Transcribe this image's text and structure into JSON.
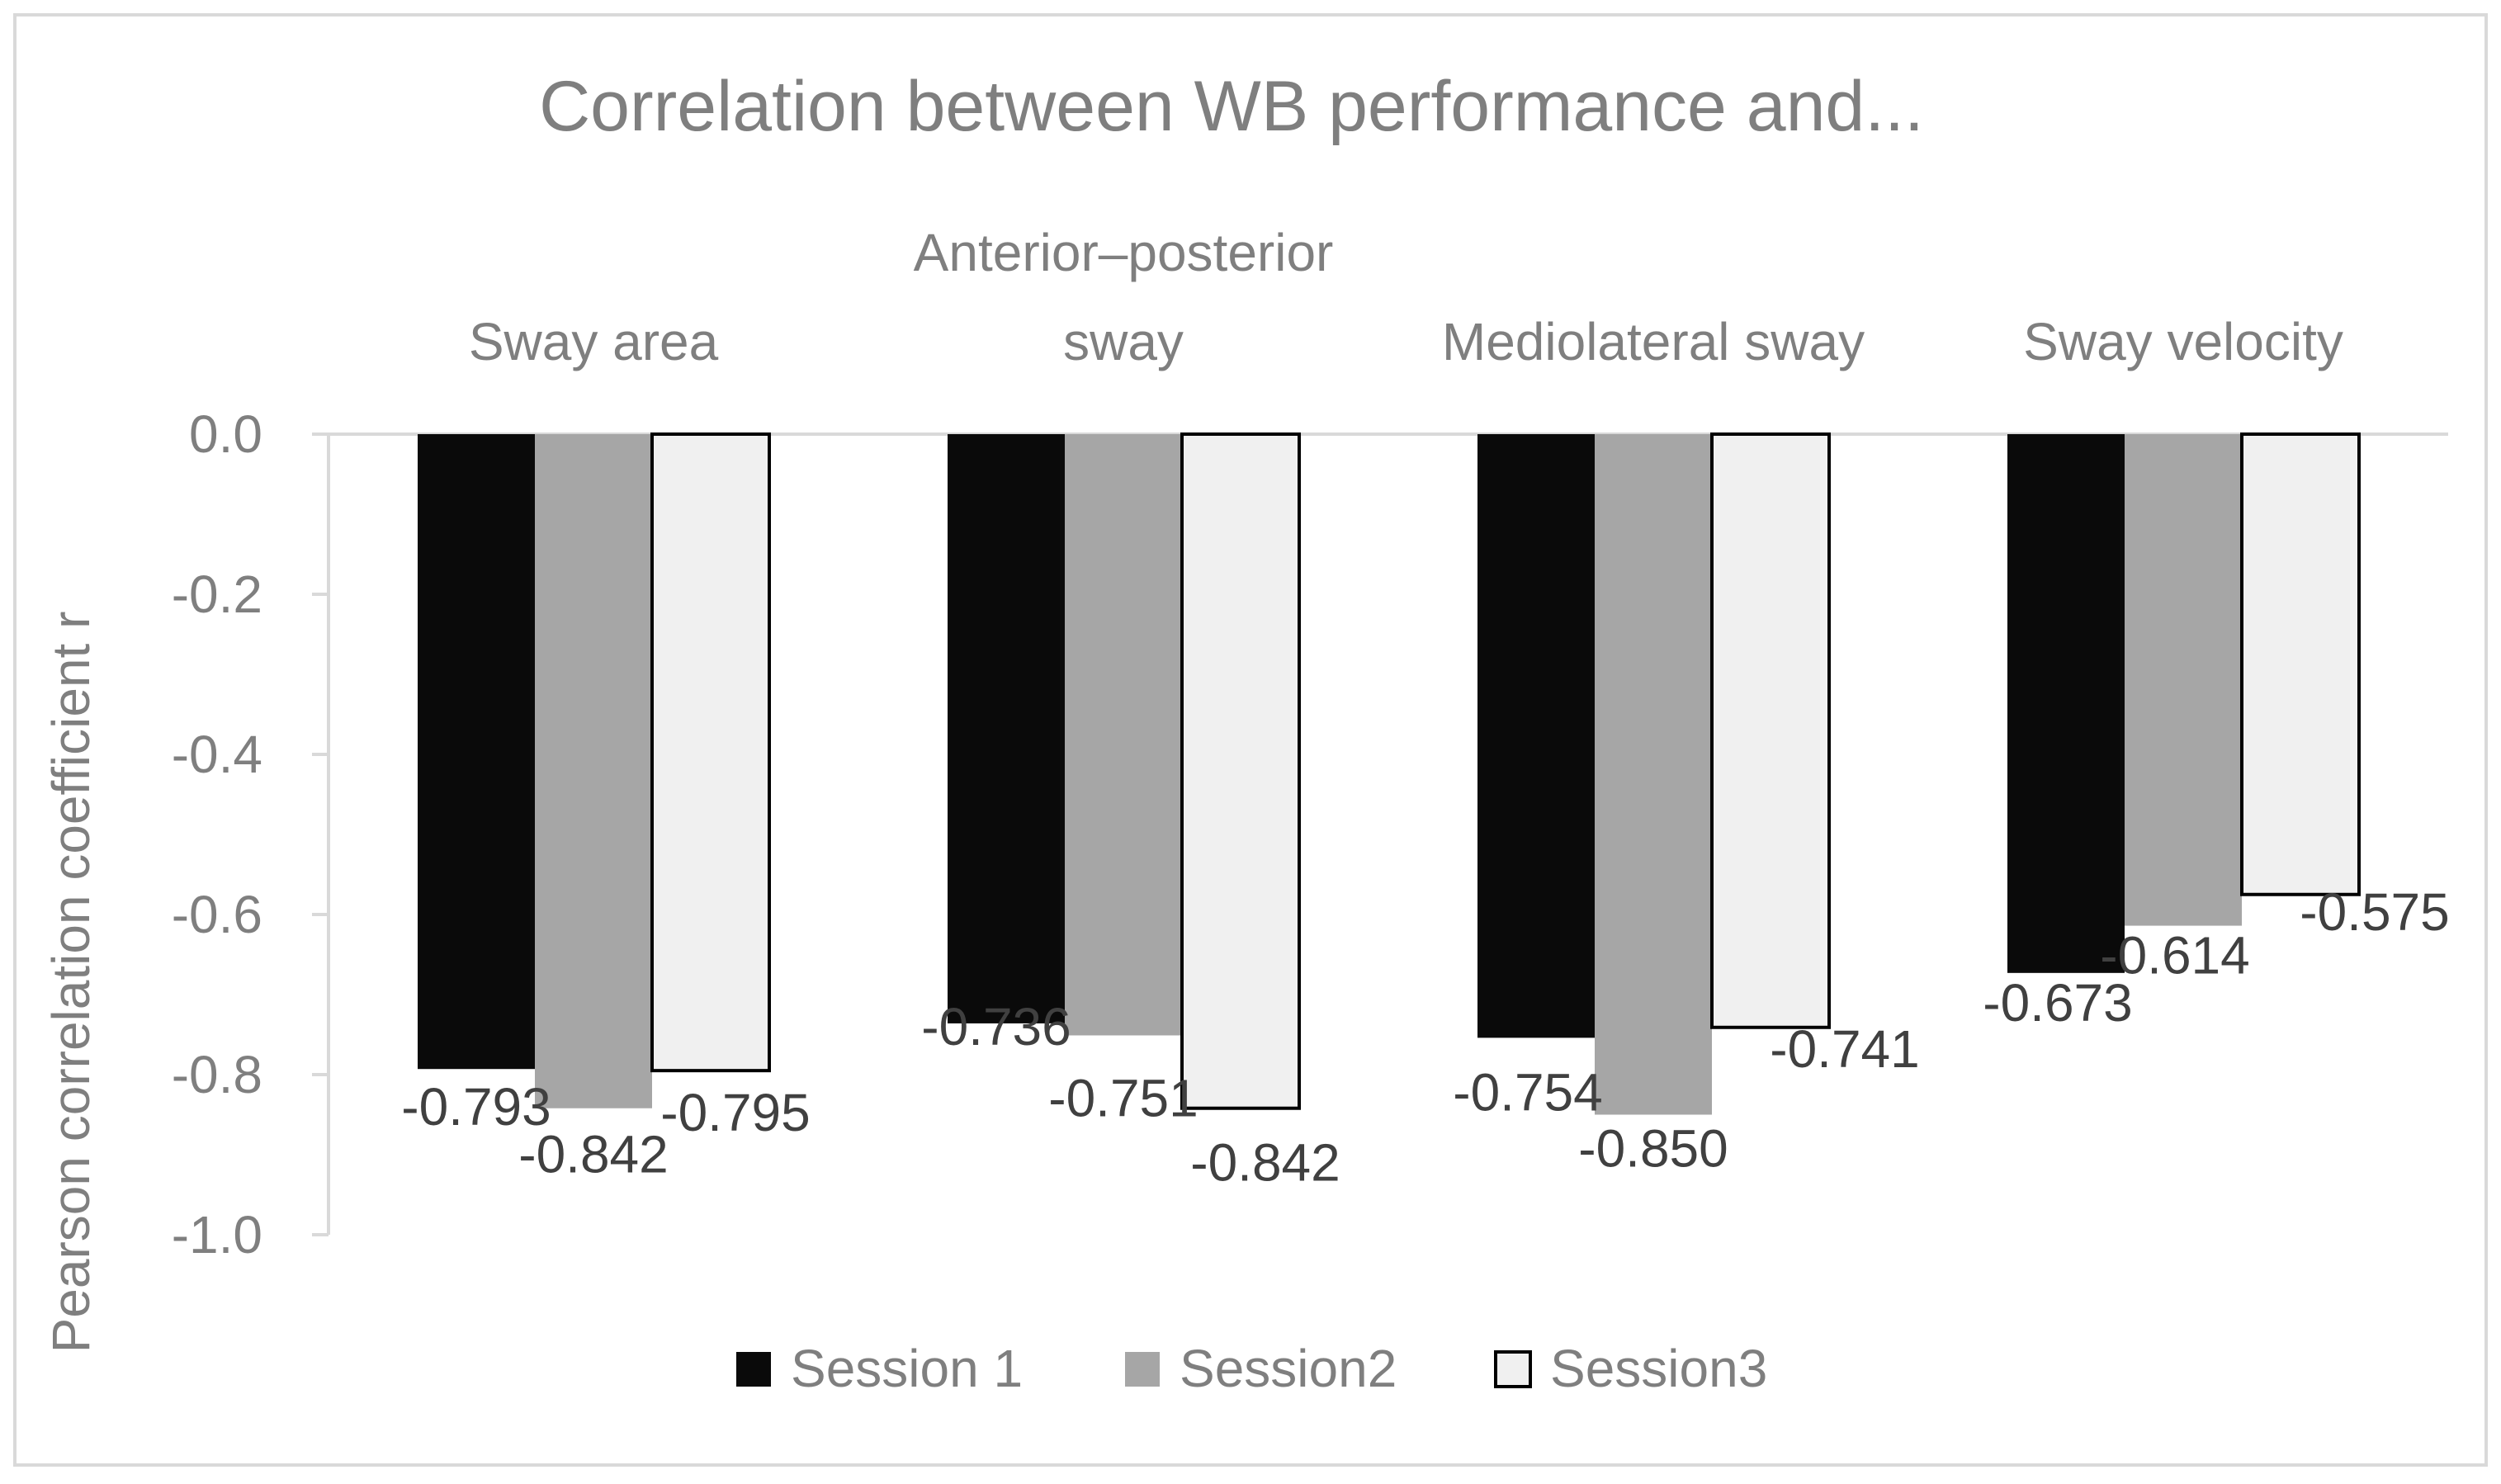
{
  "chart_data": {
    "type": "bar",
    "title": "Correlation between WB performance and...",
    "xlabel": "",
    "ylabel": "Pearson correlation coefficient r",
    "categories": [
      [
        "Sway area"
      ],
      [
        "Anterior–posterior",
        "sway"
      ],
      [
        "Mediolateral sway"
      ],
      [
        "Sway velocity"
      ]
    ],
    "series": [
      {
        "name": "Session 1",
        "values": [
          -0.793,
          -0.736,
          -0.754,
          -0.673
        ],
        "labels": [
          "-0.793",
          "-0.736",
          "-0.754",
          "-0.673"
        ],
        "color": "#0a0a0a",
        "stroke": "#0a0a0a"
      },
      {
        "name": "Session2",
        "values": [
          -0.842,
          -0.751,
          -0.85,
          -0.614
        ],
        "labels": [
          "-0.842",
          "-0.751",
          "-0.850",
          "-0.614"
        ],
        "color": "#a6a6a6",
        "stroke": "#a6a6a6"
      },
      {
        "name": "Session3",
        "values": [
          -0.795,
          -0.842,
          -0.741,
          -0.575
        ],
        "labels": [
          "-0.795",
          "-0.842",
          "-0.741",
          "-0.575"
        ],
        "color": "#f0f0f0",
        "stroke": "#000000"
      }
    ],
    "yticks": [
      "0.0",
      "-0.2",
      "-0.4",
      "-0.6",
      "-0.8",
      "-1.0"
    ],
    "ylim": [
      -1.0,
      0.0
    ],
    "grid": false,
    "legend": "bottom",
    "colors": {
      "text": "#7f7f7f",
      "axis": "#d9d9d9",
      "frame": "#d9d9d9",
      "label": "#404040"
    }
  }
}
